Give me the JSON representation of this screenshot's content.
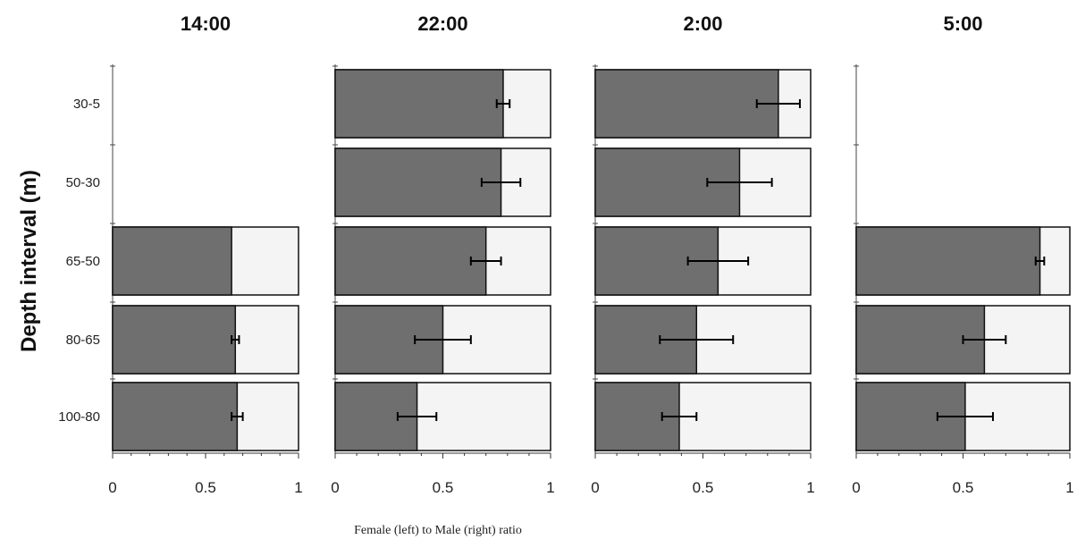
{
  "chart_data": {
    "type": "bar",
    "orientation": "horizontal-stacked-ratio",
    "ylabel": "Depth interval (m)",
    "xlabel": "Female (left) to Male (right) ratio",
    "categories": [
      "30-5",
      "50-30",
      "65-50",
      "80-65",
      "100-80"
    ],
    "xlim": [
      0,
      1
    ],
    "xticks": [
      "0",
      "0.5",
      "1"
    ],
    "colors": {
      "female": "#6f6f6f",
      "male": "#f4f4f4",
      "outline": "#111111"
    },
    "panels": [
      {
        "title": "14:00",
        "female_ratio": [
          null,
          null,
          0.64,
          0.66,
          0.67
        ],
        "error": [
          null,
          null,
          null,
          0.02,
          0.03
        ]
      },
      {
        "title": "22:00",
        "female_ratio": [
          0.78,
          0.77,
          0.7,
          0.5,
          0.38
        ],
        "error": [
          0.03,
          0.09,
          0.07,
          0.13,
          0.09
        ]
      },
      {
        "title": "2:00",
        "female_ratio": [
          0.85,
          0.67,
          0.57,
          0.47,
          0.39
        ],
        "error": [
          0.1,
          0.15,
          0.14,
          0.17,
          0.08
        ]
      },
      {
        "title": "5:00",
        "female_ratio": [
          null,
          null,
          0.86,
          0.6,
          0.51
        ],
        "error": [
          null,
          null,
          0.02,
          0.1,
          0.13
        ]
      }
    ]
  }
}
